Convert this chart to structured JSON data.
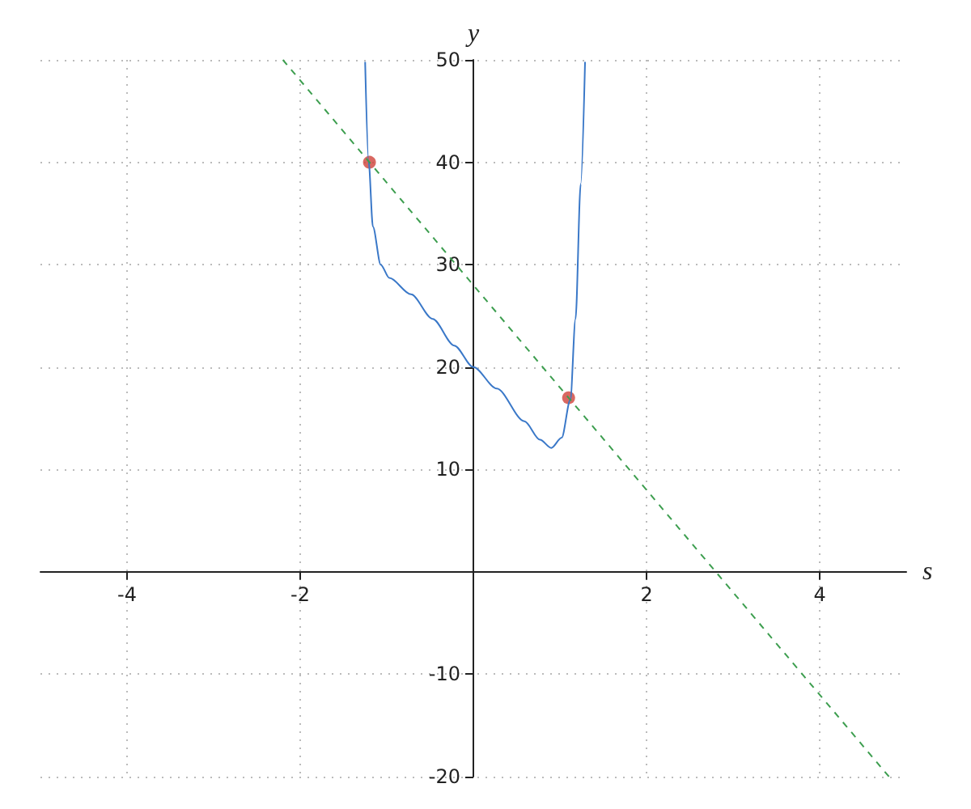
{
  "chart_data": {
    "type": "line",
    "xlabel": "s",
    "ylabel": "y",
    "xlim": [
      -5,
      5
    ],
    "ylim": [
      -20,
      50
    ],
    "xticks": [
      -4,
      -2,
      2,
      4
    ],
    "yticks": [
      -20,
      -10,
      10,
      20,
      30,
      40,
      50
    ],
    "grid": true,
    "series": [
      {
        "type": "line",
        "color": "#3a78c8",
        "marker": "none",
        "line_style": "solid",
        "x": [
          -1.25,
          -1.21,
          -1.16,
          -1.07,
          -0.97,
          -0.72,
          -0.47,
          -0.22,
          0,
          0.27,
          0.59,
          0.77,
          0.9,
          1.02,
          1.12,
          1.18,
          1.24,
          1.29
        ],
        "values": [
          49.8,
          40.1,
          33.7,
          30,
          28.7,
          27.1,
          24.7,
          22.1,
          20,
          17.9,
          14.7,
          12.9,
          12.1,
          13.1,
          16.8,
          24.7,
          37.9,
          49.8
        ]
      },
      {
        "type": "line",
        "color": "#3d9e4f",
        "marker": "none",
        "line_style": "dashed",
        "x": [
          -2.2,
          4.8
        ],
        "values": [
          50,
          -20
        ]
      },
      {
        "type": "scatter",
        "color": "#d0423a",
        "marker": "circle",
        "x": [
          -1.2,
          1.1
        ],
        "values": [
          40,
          17
        ]
      }
    ]
  }
}
